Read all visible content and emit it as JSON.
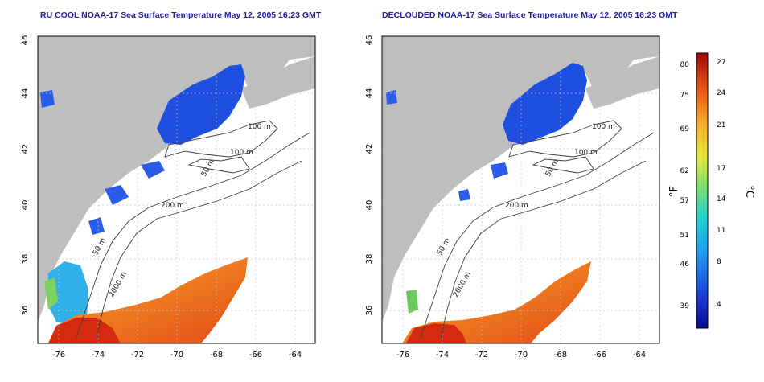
{
  "maps": [
    {
      "title": "RU COOL NOAA-17 Sea Surface Temperature May 12, 2005 16:23 GMT",
      "variant": "raw",
      "x_ticks": [
        "-76",
        "-74",
        "-72",
        "-70",
        "-68",
        "-66",
        "-64"
      ],
      "y_ticks": [
        "36",
        "38",
        "40",
        "42",
        "44",
        "46"
      ],
      "contour_labels": [
        "100 m",
        "100 m",
        "50 m",
        "200 m",
        "50 m",
        "2000 m"
      ]
    },
    {
      "title": "DECLOUDED NOAA-17 Sea Surface Temperature May 12, 2005 16:23 GMT",
      "variant": "declouded",
      "x_ticks": [
        "-76",
        "-74",
        "-72",
        "-70",
        "-68",
        "-66",
        "-64"
      ],
      "y_ticks": [
        "36",
        "38",
        "40",
        "42",
        "44",
        "46"
      ],
      "contour_labels": [
        "100 m",
        "100 m",
        "50 m",
        "200 m",
        "50 m",
        "2000 m"
      ]
    }
  ],
  "colorbar": {
    "f_label": "°F",
    "c_label": "°C",
    "f_ticks": [
      "80",
      "75",
      "69",
      "62",
      "57",
      "51",
      "46",
      "39"
    ],
    "c_ticks": [
      "27",
      "24",
      "21",
      "17",
      "14",
      "11",
      "8",
      "4"
    ]
  },
  "colors": {
    "land": "#bebebe",
    "cold": "#1f4fe0",
    "warm": "#e8501a",
    "title": "#1e1ea8"
  }
}
